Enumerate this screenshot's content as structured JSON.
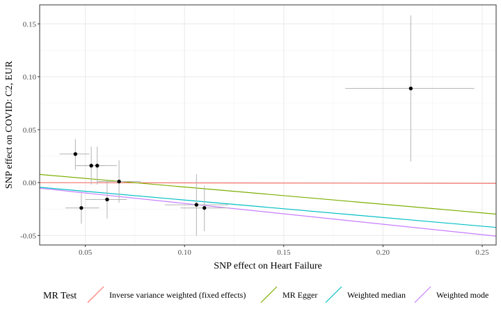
{
  "chart_data": {
    "type": "scatter",
    "xlabel": "SNP effect on Heart Failure",
    "ylabel": "SNP effect on COVID: C2, EUR",
    "xlim": [
      0.027,
      0.257
    ],
    "ylim": [
      -0.059,
      0.168
    ],
    "x_ticks": [
      0.05,
      0.1,
      0.15,
      0.2,
      0.25
    ],
    "x_tick_labels": [
      "0.05",
      "0.10",
      "0.15",
      "0.20",
      "0.25"
    ],
    "y_ticks": [
      -0.05,
      0.0,
      0.05,
      0.1,
      0.15
    ],
    "y_tick_labels": [
      "-0.05",
      "0.00",
      "0.05",
      "0.10",
      "0.15"
    ],
    "grid": true,
    "points": [
      {
        "x": 0.045,
        "y": 0.027,
        "x_lo": 0.037,
        "x_hi": 0.052,
        "y_lo": 0.012,
        "y_hi": 0.041
      },
      {
        "x": 0.053,
        "y": 0.016,
        "x_lo": 0.045,
        "x_hi": 0.06,
        "y_lo": -0.002,
        "y_hi": 0.034
      },
      {
        "x": 0.056,
        "y": 0.016,
        "x_lo": 0.046,
        "x_hi": 0.066,
        "y_lo": -0.002,
        "y_hi": 0.034
      },
      {
        "x": 0.067,
        "y": 0.001,
        "x_lo": 0.056,
        "x_hi": 0.078,
        "y_lo": -0.019,
        "y_hi": 0.021
      },
      {
        "x": 0.048,
        "y": -0.024,
        "x_lo": 0.04,
        "x_hi": 0.057,
        "y_lo": -0.039,
        "y_hi": -0.01
      },
      {
        "x": 0.061,
        "y": -0.016,
        "x_lo": 0.05,
        "x_hi": 0.071,
        "y_lo": -0.034,
        "y_hi": 0.002
      },
      {
        "x": 0.106,
        "y": -0.021,
        "x_lo": 0.09,
        "x_hi": 0.122,
        "y_lo": -0.05,
        "y_hi": 0.008
      },
      {
        "x": 0.11,
        "y": -0.024,
        "x_lo": 0.098,
        "x_hi": 0.122,
        "y_lo": -0.046,
        "y_hi": -0.003
      },
      {
        "x": 0.214,
        "y": 0.089,
        "x_lo": 0.181,
        "x_hi": 0.246,
        "y_lo": 0.02,
        "y_hi": 0.158
      }
    ],
    "legend_title": "MR Test",
    "legend_position": "bottom",
    "series": [
      {
        "name": "Inverse variance weighted (fixed effects)",
        "color": "#F8766D",
        "intercept": 0.0,
        "slope": -0.003
      },
      {
        "name": "MR Egger",
        "color": "#7CAE00",
        "intercept": 0.0121,
        "slope": -0.163
      },
      {
        "name": "Weighted median",
        "color": "#00BFC4",
        "intercept": 0.0,
        "slope": -0.165
      },
      {
        "name": "Weighted mode",
        "color": "#C77CFF",
        "intercept": 0.0,
        "slope": -0.197
      }
    ]
  }
}
